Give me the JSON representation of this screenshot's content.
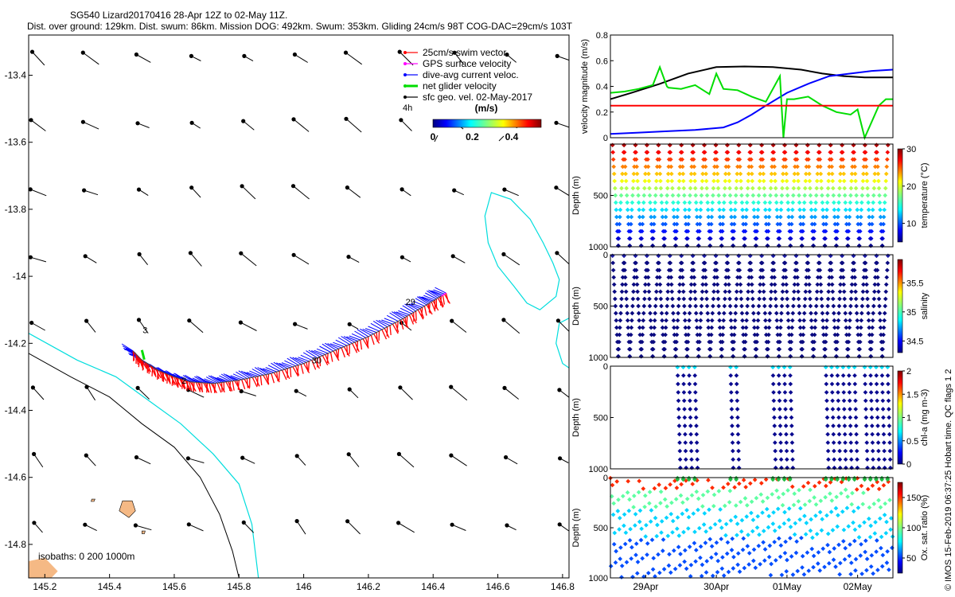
{
  "header": {
    "line1": "SG540 Lizard20170416 28-Apr 12Z to 02-May 11Z.",
    "line2": "Dist. over ground: 129km. Dist. swum: 86km. Mission DOG: 492km. Swum: 353km. Gliding 24cm/s 98T COG-DAC=29cm/s 103T"
  },
  "watermark": "© IMOS 15-Feb-2019 06:37:25 Hobart time. QC flags 1  2",
  "colors": {
    "swim": "#ff0000",
    "gps": "#ff00ff",
    "dac": "#0000ff",
    "net": "#00dd00",
    "geo": "#000000",
    "coast_fill": "#f5b985",
    "isobath_200": "#00dddd",
    "isobath_1000": "#000000"
  },
  "chart_data": [
    {
      "id": "map",
      "type": "map",
      "xlim": [
        145.15,
        146.82
      ],
      "ylim": [
        -14.9,
        -13.28
      ],
      "xticks": [
        145.2,
        145.4,
        145.6,
        145.8,
        146,
        146.2,
        146.4,
        146.6,
        146.8
      ],
      "xtick_labels": [
        "145.2",
        "145.4",
        "145.6",
        "145.8",
        "146",
        "146.2",
        "146.4",
        "146.6",
        "146.8"
      ],
      "yticks": [
        -13.4,
        -13.6,
        -13.8,
        -14,
        -14.2,
        -14.4,
        -14.6,
        -14.8
      ],
      "ytick_labels": [
        "-13.4",
        "-13.6",
        "-13.8",
        "-14",
        "-14.2",
        "-14.4",
        "-14.6",
        "-14.8"
      ],
      "legend": [
        {
          "label": "25cm/s swim vector",
          "color": "#ff0000"
        },
        {
          "label": "GPS surface velocity",
          "color": "#ff00ff"
        },
        {
          "label": "dive-avg current veloc.",
          "color": "#0000ff"
        },
        {
          "label": "net glider velocity",
          "color": "#00dd00"
        },
        {
          "label": "sfc geo. vel. 02-May-2017",
          "color": "#000000"
        }
      ],
      "colorbar": {
        "title": "(m/s)",
        "ticks": [
          "0",
          "0.2",
          "0.4"
        ],
        "range": [
          0,
          0.55
        ],
        "time_label": "4h"
      },
      "isobath_label": "isobaths: 0   200  1000m",
      "track": {
        "lon": [
          146.44,
          146.38,
          146.3,
          146.2,
          146.1,
          146.0,
          145.9,
          145.8,
          145.72,
          145.65,
          145.6,
          145.55,
          145.5,
          145.47
        ],
        "lat": [
          -14.05,
          -14.085,
          -14.13,
          -14.18,
          -14.22,
          -14.26,
          -14.29,
          -14.31,
          -14.32,
          -14.315,
          -14.3,
          -14.28,
          -14.25,
          -14.22
        ]
      },
      "day_labels": [
        {
          "text": "3",
          "lon": 145.51,
          "lat": -14.17
        },
        {
          "text": "2",
          "lon": 145.63,
          "lat": -14.32
        },
        {
          "text": "30",
          "lon": 146.04,
          "lat": -14.26
        },
        {
          "text": "29",
          "lon": 146.33,
          "lat": -14.085
        }
      ],
      "geo_grid": {
        "lon_start": 145.18,
        "lon_step": 0.1625,
        "lat_start": -13.35,
        "lat_step": 0.2,
        "u": -0.12,
        "v": 0.07
      },
      "reef": {
        "lon": [
          146.58,
          146.64,
          146.7,
          146.74,
          146.77,
          146.79,
          146.78,
          146.73,
          146.69,
          146.65,
          146.6,
          146.57,
          146.56,
          146.58
        ],
        "lat": [
          -13.75,
          -13.77,
          -13.83,
          -13.9,
          -13.96,
          -14.01,
          -14.06,
          -14.1,
          -14.08,
          -14.03,
          -13.97,
          -13.9,
          -13.82,
          -13.75
        ]
      },
      "reef_edge": {
        "lon": [
          146.83,
          146.79,
          146.78,
          146.8,
          146.83
        ],
        "lat": [
          -14.12,
          -14.14,
          -14.2,
          -14.26,
          -14.28
        ]
      },
      "isobath_200_line": {
        "lon": [
          145.15,
          145.3,
          145.42,
          145.52,
          145.62,
          145.72,
          145.8,
          145.84,
          145.86
        ],
        "lat": [
          -14.17,
          -14.25,
          -14.3,
          -14.37,
          -14.44,
          -14.53,
          -14.62,
          -14.74,
          -14.9
        ]
      },
      "isobath_1000_line": {
        "lon": [
          145.15,
          145.28,
          145.4,
          145.5,
          145.6,
          145.68,
          145.74,
          145.78,
          145.8
        ],
        "lat": [
          -14.23,
          -14.3,
          -14.36,
          -14.44,
          -14.51,
          -14.6,
          -14.71,
          -14.82,
          -14.9
        ]
      },
      "coast_blob": {
        "lon": [
          145.15,
          145.2,
          145.24,
          145.22,
          145.15
        ],
        "lat": [
          -14.85,
          -14.84,
          -14.88,
          -14.9,
          -14.9
        ]
      },
      "islands": [
        {
          "lon": [
            145.44,
            145.47,
            145.48,
            145.46,
            145.43,
            145.44
          ],
          "lat": [
            -14.67,
            -14.67,
            -14.7,
            -14.72,
            -14.7,
            -14.67
          ]
        },
        {
          "lon": [
            145.345,
            145.355,
            145.352,
            145.343,
            145.345
          ],
          "lat": [
            -14.665,
            -14.665,
            -14.672,
            -14.672,
            -14.665
          ]
        },
        {
          "lon": [
            145.5,
            145.51,
            145.508,
            145.5,
            145.5
          ],
          "lat": [
            -14.76,
            -14.76,
            -14.768,
            -14.768,
            -14.76
          ]
        }
      ],
      "series_names": [
        "swim vectors",
        "dive-avg current",
        "net glider velocity",
        "sfc geo. velocity"
      ]
    },
    {
      "id": "velocity",
      "type": "line",
      "ylabel": "velocity magnitude (m/s)",
      "ylim": [
        0,
        0.8
      ],
      "yticks": [
        0,
        0.2,
        0.4,
        0.6,
        0.8
      ],
      "ytick_labels": [
        "0",
        "0.2",
        "0.4",
        "0.6",
        "0.8"
      ],
      "xlim": [
        0,
        4
      ],
      "series": [
        {
          "name": "sfc geo. vel.",
          "color": "#000000",
          "x": [
            0,
            0.3,
            0.7,
            1.1,
            1.5,
            1.9,
            2.3,
            2.7,
            3.0,
            3.3,
            3.6,
            4.0
          ],
          "y": [
            0.3,
            0.35,
            0.42,
            0.5,
            0.55,
            0.555,
            0.55,
            0.53,
            0.5,
            0.48,
            0.47,
            0.47
          ]
        },
        {
          "name": "dive-avg current",
          "color": "#0000ff",
          "x": [
            0,
            0.4,
            0.8,
            1.2,
            1.6,
            1.8,
            2.0,
            2.2,
            2.5,
            2.8,
            3.1,
            3.4,
            3.7,
            4.0
          ],
          "y": [
            0.03,
            0.04,
            0.05,
            0.06,
            0.08,
            0.12,
            0.18,
            0.25,
            0.35,
            0.42,
            0.48,
            0.5,
            0.52,
            0.53
          ]
        },
        {
          "name": "net glider velocity",
          "color": "#00dd00",
          "x": [
            0,
            0.2,
            0.4,
            0.6,
            0.7,
            0.8,
            0.82,
            1.0,
            1.2,
            1.4,
            1.5,
            1.6,
            1.8,
            2.0,
            2.2,
            2.4,
            2.45,
            2.5,
            2.6,
            2.8,
            3.0,
            3.2,
            3.4,
            3.5,
            3.6,
            3.8,
            3.9,
            4.0
          ],
          "y": [
            0.35,
            0.36,
            0.38,
            0.41,
            0.55,
            0.4,
            0.39,
            0.38,
            0.41,
            0.34,
            0.5,
            0.38,
            0.37,
            0.32,
            0.28,
            0.48,
            0.0,
            0.3,
            0.3,
            0.32,
            0.25,
            0.2,
            0.18,
            0.22,
            0.0,
            0.25,
            0.3,
            0.3
          ]
        },
        {
          "name": "25cm/s swim",
          "color": "#ff0000",
          "x": [
            0,
            4.0
          ],
          "y": [
            0.25,
            0.25
          ]
        }
      ]
    },
    {
      "id": "temperature",
      "type": "scatter",
      "ylabel": "Depth (m)",
      "clabel": "temperature (°C)",
      "ylim": [
        1000,
        0
      ],
      "yticks": [
        500,
        1000
      ],
      "ytick_labels": [
        "500",
        "1000"
      ],
      "cbar_ticks": [
        "10",
        "20",
        "30"
      ],
      "crange": [
        5,
        30
      ],
      "n_dives": 24,
      "dive_depth": 1000
    },
    {
      "id": "salinity",
      "type": "scatter",
      "ylabel": "Depth (m)",
      "clabel": "salinity",
      "ylim": [
        1000,
        0
      ],
      "yticks": [
        0,
        500,
        1000
      ],
      "ytick_labels": [
        "0",
        "500",
        "1000"
      ],
      "cbar_ticks": [
        "34.5",
        "35",
        "35.5"
      ],
      "crange": [
        34.3,
        35.9
      ],
      "n_dives": 24,
      "dive_depth": 1000
    },
    {
      "id": "chla",
      "type": "scatter",
      "ylabel": "Depth (m)",
      "clabel": "chl-a (mg m-3)",
      "ylim": [
        1000,
        0
      ],
      "yticks": [
        0,
        500,
        1000
      ],
      "ytick_labels": [
        "0",
        "500",
        "1000"
      ],
      "cbar_ticks": [
        "0",
        "0.5",
        "1",
        "1.5",
        "2"
      ],
      "crange": [
        0,
        2
      ],
      "dive_groups": [
        [
          0.95,
          1.2
        ],
        [
          1.7,
          1.85
        ],
        [
          2.3,
          2.55
        ],
        [
          3.05,
          3.5
        ],
        [
          3.6,
          4.0
        ]
      ]
    },
    {
      "id": "oxygen",
      "type": "scatter",
      "ylabel": "Depth (m)",
      "clabel": "Ox. sat. ratio (%)",
      "ylim": [
        1000,
        0
      ],
      "yticks": [
        0,
        500,
        1000
      ],
      "ytick_labels": [
        "0",
        "500",
        "1000"
      ],
      "cbar_ticks": [
        "50",
        "100",
        "150"
      ],
      "crange": [
        25,
        175
      ],
      "xticks": [
        0.5,
        1.5,
        2.5,
        3.5
      ],
      "xtick_labels": [
        "29Apr",
        "30Apr",
        "01May",
        "02May"
      ]
    }
  ]
}
